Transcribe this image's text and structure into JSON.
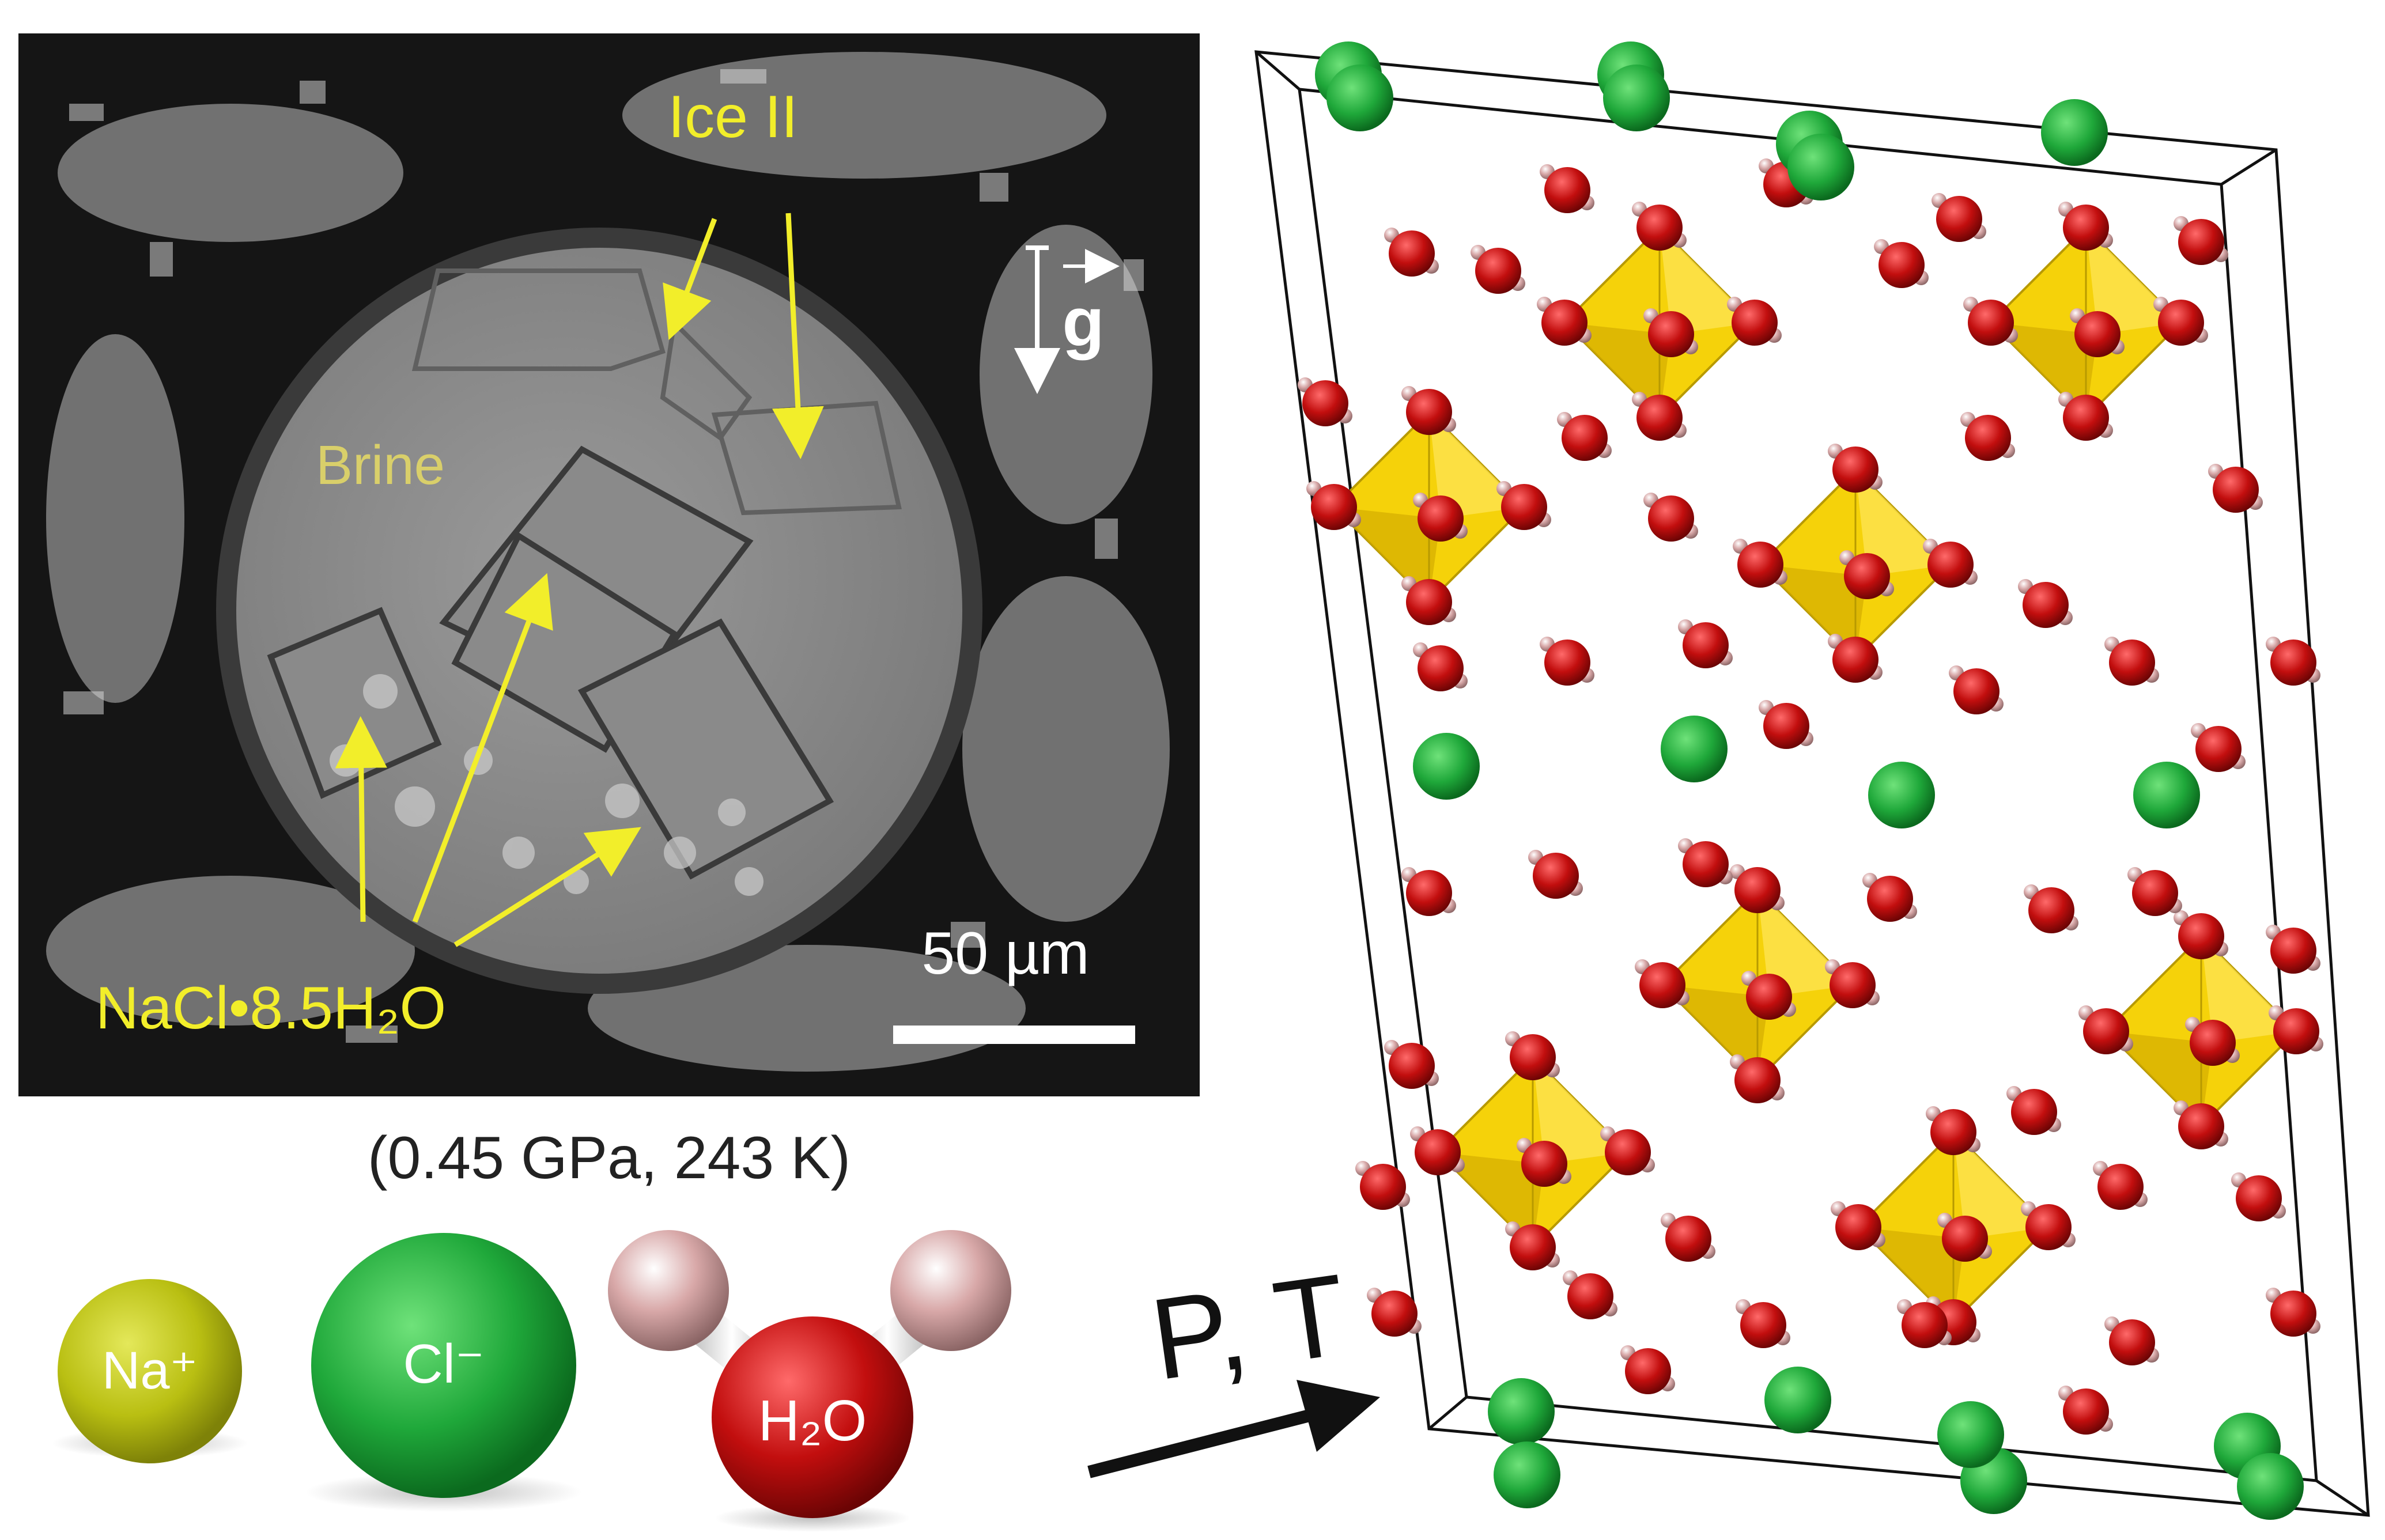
{
  "micrograph": {
    "label_ice": "Ice II",
    "label_brine": "Brine",
    "label_hydrate": "NaCl•8.5H₂O",
    "gravity_symbol": "g",
    "scale_bar_label": "50 µm",
    "caption": "(0.45 GPa, 243 K)"
  },
  "legend": {
    "sodium": "Na⁺",
    "chloride": "Cl⁻",
    "water": "H₂O"
  },
  "transition": {
    "label": "P, T"
  },
  "colors": {
    "annotation_yellow": "#f2ee2a",
    "brine_text": "#d9cf6a",
    "sodium": "#b9bf12",
    "chloride": "#1fa83a",
    "oxygen": "#c20e0e",
    "hydrogen": "#d8a8a8",
    "octahedron": "#f5d20a"
  }
}
